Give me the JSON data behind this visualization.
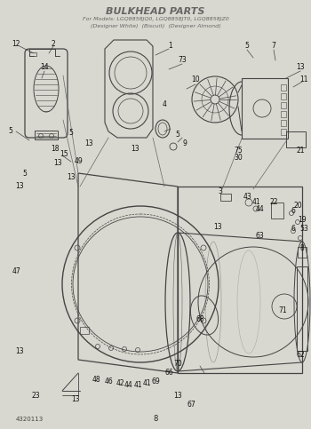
{
  "title": "BULKHEAD PARTS",
  "subtitle1": "For Models: LGQ8858JQ0, LGQ8858JT0, LGQ8858JZ0",
  "subtitle2": "(Designer White)  (Biscuit)  (Designer Almond)",
  "bg_color": "#d8d8d0",
  "line_color": "#444444",
  "text_color": "#222222",
  "title_color": "#666666",
  "page_number": "8",
  "part_number": "4320113",
  "fig_width": 3.5,
  "fig_height": 4.83,
  "dpi": 100
}
